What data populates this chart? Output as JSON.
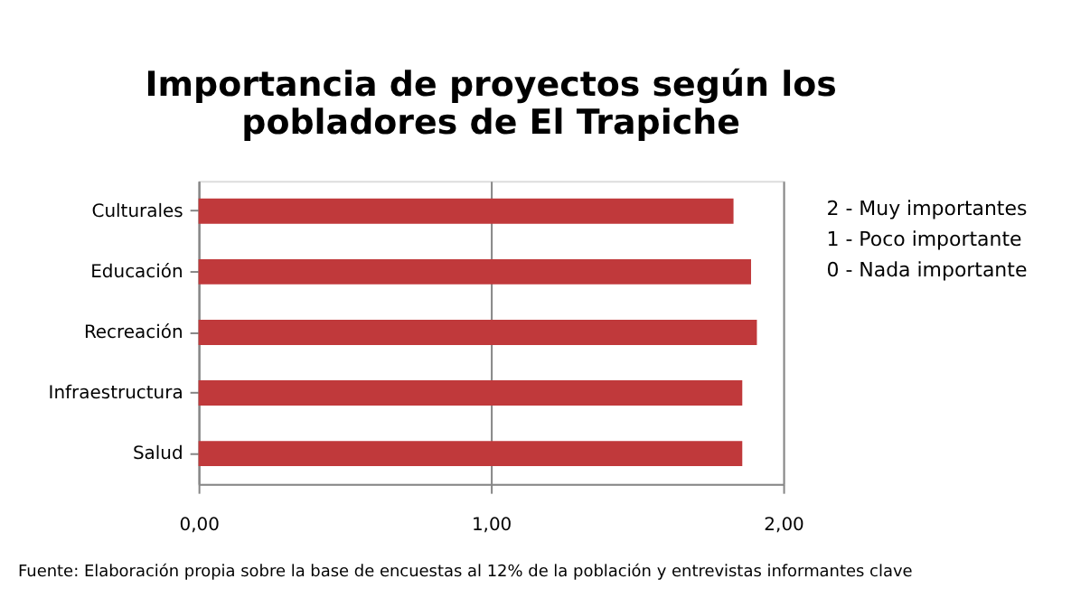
{
  "chart_data": {
    "type": "bar",
    "orientation": "horizontal",
    "title": [
      "Importancia de proyectos según los",
      "pobladores de El Trapiche"
    ],
    "categories": [
      "Culturales",
      "Educación",
      "Recreación",
      "Infraestructura",
      "Salud"
    ],
    "values": [
      1.83,
      1.89,
      1.91,
      1.86,
      1.86
    ],
    "color": "#c0393b",
    "xlim": [
      0,
      2
    ],
    "xticks": [
      {
        "value": 0,
        "label": "0,00"
      },
      {
        "value": 1,
        "label": "1,00"
      },
      {
        "value": 2,
        "label": "2,00"
      }
    ],
    "grid": "x",
    "annotations": [
      "2 - Muy importantes",
      "1 - Poco importante",
      "0 - Nada importante",
      "Fuente: Elaboración propia sobre la base de encuestas al 12%  de la población y entrevistas informantes clave"
    ]
  }
}
